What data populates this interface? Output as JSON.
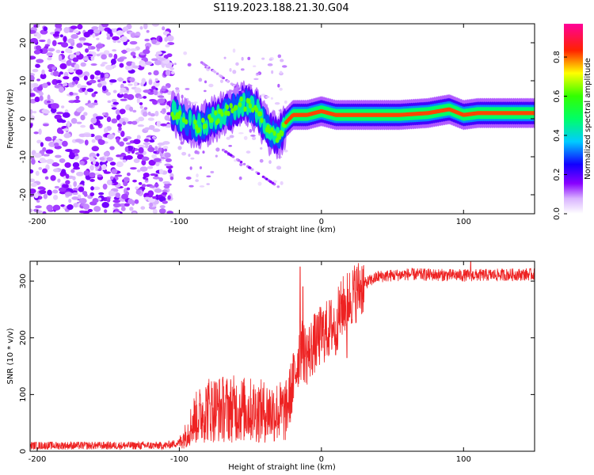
{
  "figure_title": "S119.2023.188.21.30.G04",
  "colors": {
    "snr_line": "#ee2222",
    "axis": "#000000",
    "background": "#ffffff"
  },
  "chart_data": [
    {
      "type": "heatmap",
      "xlabel": "Height of straight line (km)",
      "ylabel": "Frequency (Hz)",
      "xlim": [
        -205,
        150
      ],
      "ylim": [
        -25,
        25
      ],
      "xticks": [
        -200,
        -100,
        0,
        100
      ],
      "yticks": [
        -20,
        -10,
        0,
        10,
        20
      ],
      "colorbar": {
        "label": "Normalized spectral amplitude",
        "range": [
          0,
          0.97
        ],
        "ticks": [
          0.0,
          0.2,
          0.4,
          0.6,
          0.8
        ],
        "colormap": "white-violet-blue-cyan-green-yellow-red-magenta"
      },
      "description_points": {
        "noise_region_x": [
          -205,
          -105
        ],
        "scintillation_region_x": [
          -105,
          -25
        ],
        "stable_track": [
          [
            -105,
            2
          ],
          [
            -95,
            -1
          ],
          [
            -85,
            -2
          ],
          [
            -75,
            0
          ],
          [
            -65,
            2
          ],
          [
            -55,
            4
          ],
          [
            -45,
            2
          ],
          [
            -38,
            -3
          ],
          [
            -30,
            -5
          ],
          [
            -25,
            -1
          ],
          [
            -20,
            1
          ],
          [
            -10,
            1
          ],
          [
            0,
            2
          ],
          [
            10,
            1
          ],
          [
            20,
            1
          ],
          [
            40,
            1
          ],
          [
            55,
            1
          ],
          [
            75,
            1.5
          ],
          [
            90,
            2.5
          ],
          [
            100,
            1
          ],
          [
            110,
            1.5
          ],
          [
            130,
            1.5
          ],
          [
            150,
            1.5
          ]
        ]
      }
    },
    {
      "type": "line",
      "xlabel": "Height of straight line (km)",
      "ylabel": "SNR (10 * v/v)",
      "xlim": [
        -205,
        150
      ],
      "ylim": [
        0,
        335
      ],
      "xticks": [
        -200,
        -100,
        0,
        100
      ],
      "yticks": [
        0,
        100,
        200,
        300
      ],
      "series": [
        {
          "color": "#ee2222",
          "trend": [
            [
              -205,
              10
            ],
            [
              -110,
              10
            ],
            [
              -100,
              15
            ],
            [
              -95,
              30
            ],
            [
              -90,
              55
            ],
            [
              -80,
              75
            ],
            [
              -60,
              75
            ],
            [
              -40,
              70
            ],
            [
              -25,
              70
            ],
            [
              -20,
              120
            ],
            [
              -15,
              180
            ],
            [
              -10,
              170
            ],
            [
              -5,
              190
            ],
            [
              0,
              205
            ],
            [
              5,
              215
            ],
            [
              10,
              225
            ],
            [
              15,
              255
            ],
            [
              20,
              270
            ],
            [
              30,
              295
            ],
            [
              40,
              308
            ],
            [
              60,
              312
            ],
            [
              100,
              310
            ],
            [
              150,
              312
            ]
          ],
          "spikes": [
            [
              -15,
              325
            ],
            [
              -13,
              290
            ],
            [
              -3,
              240
            ],
            [
              10,
              170
            ],
            [
              18,
              165
            ],
            [
              105,
              335
            ]
          ]
        }
      ]
    }
  ]
}
